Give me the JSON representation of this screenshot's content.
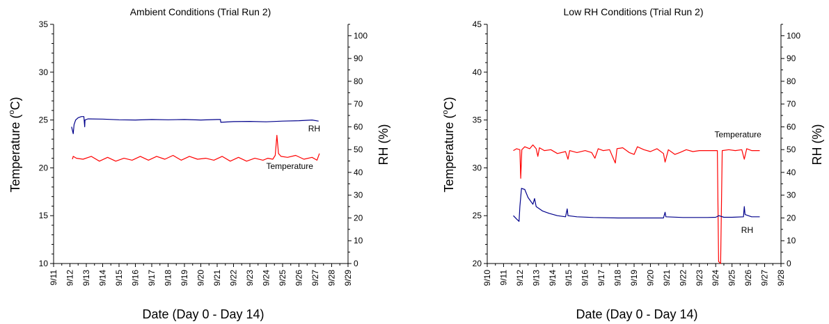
{
  "chart_data": [
    {
      "type": "line",
      "title": "Ambient Conditions (Trial Run 2)",
      "xlabel": "Date (Day 0 - Day 14)",
      "ylabel_left_main": "Temperature (",
      "ylabel_left_sup": "o",
      "ylabel_left_tail": "C)",
      "ylabel_right": "RH (%)",
      "x_ticks": [
        "9/11",
        "9/12",
        "9/13",
        "9/14",
        "9/15",
        "9/16",
        "9/17",
        "9/18",
        "9/19",
        "9/20",
        "9/21",
        "9/22",
        "9/23",
        "9/24",
        "9/25",
        "9/26",
        "9/27",
        "9/28",
        "9/29"
      ],
      "xlim": [
        0,
        18
      ],
      "ylim_left": [
        10,
        35
      ],
      "y_ticks_left": [
        10,
        15,
        20,
        25,
        30,
        35
      ],
      "ylim_right": [
        0,
        105
      ],
      "y_ticks_right": [
        0,
        10,
        20,
        30,
        40,
        50,
        60,
        70,
        80,
        90,
        100
      ],
      "grid": false,
      "series": [
        {
          "name": "RH",
          "axis": "right",
          "color": "#00008b",
          "points": [
            [
              1.1,
              60
            ],
            [
              1.2,
              57
            ],
            [
              1.25,
              61
            ],
            [
              1.35,
              63
            ],
            [
              1.5,
              64
            ],
            [
              1.7,
              64.5
            ],
            [
              1.85,
              64.5
            ],
            [
              1.9,
              60
            ],
            [
              1.92,
              63
            ],
            [
              2.1,
              63.5
            ],
            [
              3.0,
              63.4
            ],
            [
              4.0,
              63.1
            ],
            [
              5.0,
              63.0
            ],
            [
              6.0,
              63.2
            ],
            [
              7.0,
              63.1
            ],
            [
              8.0,
              63.2
            ],
            [
              9.0,
              63.0
            ],
            [
              10.0,
              63.2
            ],
            [
              10.2,
              63.2
            ],
            [
              10.22,
              62.0
            ],
            [
              11.0,
              62.3
            ],
            [
              12.0,
              62.4
            ],
            [
              13.0,
              62.2
            ],
            [
              14.0,
              62.5
            ],
            [
              15.0,
              62.7
            ],
            [
              15.8,
              63.0
            ],
            [
              16.2,
              62.5
            ]
          ]
        },
        {
          "name": "Temperature",
          "axis": "left",
          "color": "#ff0000",
          "points": [
            [
              1.15,
              20.9
            ],
            [
              1.2,
              21.2
            ],
            [
              1.4,
              21.0
            ],
            [
              1.8,
              20.9
            ],
            [
              2.3,
              21.2
            ],
            [
              2.8,
              20.7
            ],
            [
              3.3,
              21.1
            ],
            [
              3.8,
              20.7
            ],
            [
              4.3,
              21.0
            ],
            [
              4.8,
              20.8
            ],
            [
              5.3,
              21.2
            ],
            [
              5.8,
              20.8
            ],
            [
              6.3,
              21.2
            ],
            [
              6.8,
              20.9
            ],
            [
              7.3,
              21.3
            ],
            [
              7.8,
              20.8
            ],
            [
              8.3,
              21.2
            ],
            [
              8.8,
              20.9
            ],
            [
              9.3,
              21.0
            ],
            [
              9.8,
              20.8
            ],
            [
              10.3,
              21.2
            ],
            [
              10.8,
              20.7
            ],
            [
              11.3,
              21.1
            ],
            [
              11.8,
              20.7
            ],
            [
              12.3,
              21.0
            ],
            [
              12.8,
              20.8
            ],
            [
              13.1,
              21.0
            ],
            [
              13.4,
              20.9
            ],
            [
              13.55,
              21.3
            ],
            [
              13.65,
              23.4
            ],
            [
              13.75,
              21.5
            ],
            [
              13.9,
              21.2
            ],
            [
              14.3,
              21.1
            ],
            [
              14.8,
              21.3
            ],
            [
              15.3,
              20.9
            ],
            [
              15.8,
              21.1
            ],
            [
              16.1,
              20.8
            ],
            [
              16.25,
              21.5
            ]
          ]
        }
      ],
      "annotations": [
        "RH",
        "Temperature"
      ]
    },
    {
      "type": "line",
      "title": "Low RH Conditions (Trial Run 2)",
      "xlabel": "Date (Day 0 - Day 14)",
      "ylabel_left_main": "Temperature (",
      "ylabel_left_sup": "o",
      "ylabel_left_tail": "C)",
      "ylabel_right": "RH (%)",
      "x_ticks": [
        "9/10",
        "9/11",
        "9/12",
        "9/13",
        "9/14",
        "9/15",
        "9/16",
        "9/17",
        "9/18",
        "9/19",
        "9/20",
        "9/21",
        "9/22",
        "9/23",
        "9/24",
        "9/25",
        "9/26",
        "9/27",
        "9/28"
      ],
      "xlim": [
        0,
        18
      ],
      "ylim_left": [
        20,
        45
      ],
      "y_ticks_left": [
        20,
        25,
        30,
        35,
        40,
        45
      ],
      "ylim_right": [
        0,
        105
      ],
      "y_ticks_right": [
        0,
        10,
        20,
        30,
        40,
        50,
        60,
        70,
        80,
        90,
        100
      ],
      "grid": false,
      "series": [
        {
          "name": "Temperature",
          "axis": "left",
          "color": "#ff0000",
          "points": [
            [
              1.6,
              31.8
            ],
            [
              1.8,
              32.0
            ],
            [
              2.0,
              31.9
            ],
            [
              2.05,
              28.9
            ],
            [
              2.12,
              31.9
            ],
            [
              2.3,
              32.2
            ],
            [
              2.6,
              32.0
            ],
            [
              2.8,
              32.4
            ],
            [
              3.0,
              32.0
            ],
            [
              3.1,
              31.2
            ],
            [
              3.2,
              32.1
            ],
            [
              3.5,
              31.8
            ],
            [
              3.9,
              31.9
            ],
            [
              4.3,
              31.5
            ],
            [
              4.8,
              31.7
            ],
            [
              4.95,
              30.9
            ],
            [
              5.05,
              31.8
            ],
            [
              5.5,
              31.6
            ],
            [
              6.0,
              31.8
            ],
            [
              6.4,
              31.6
            ],
            [
              6.6,
              31.0
            ],
            [
              6.8,
              32.0
            ],
            [
              7.1,
              31.8
            ],
            [
              7.5,
              31.9
            ],
            [
              7.85,
              30.5
            ],
            [
              7.95,
              32.0
            ],
            [
              8.3,
              32.1
            ],
            [
              8.7,
              31.6
            ],
            [
              9.0,
              31.4
            ],
            [
              9.2,
              32.2
            ],
            [
              9.6,
              31.9
            ],
            [
              10.0,
              31.7
            ],
            [
              10.4,
              32.0
            ],
            [
              10.8,
              31.5
            ],
            [
              10.9,
              30.6
            ],
            [
              11.1,
              31.9
            ],
            [
              11.5,
              31.4
            ],
            [
              11.8,
              31.6
            ],
            [
              12.2,
              31.9
            ],
            [
              12.6,
              31.7
            ],
            [
              13.0,
              31.8
            ],
            [
              13.7,
              31.8
            ],
            [
              14.1,
              31.8
            ],
            [
              14.18,
              20.2
            ],
            [
              14.3,
              20.0
            ],
            [
              14.4,
              31.8
            ],
            [
              14.8,
              31.9
            ],
            [
              15.2,
              31.8
            ],
            [
              15.6,
              31.9
            ],
            [
              15.75,
              30.9
            ],
            [
              15.9,
              32.0
            ],
            [
              16.2,
              31.8
            ],
            [
              16.7,
              31.8
            ]
          ]
        },
        {
          "name": "RH",
          "axis": "right",
          "color": "#00008b",
          "points": [
            [
              1.6,
              21
            ],
            [
              1.8,
              19.5
            ],
            [
              1.95,
              18.5
            ],
            [
              2.0,
              25
            ],
            [
              2.1,
              33
            ],
            [
              2.3,
              32.5
            ],
            [
              2.5,
              29
            ],
            [
              2.8,
              26
            ],
            [
              2.9,
              28.5
            ],
            [
              3.0,
              25
            ],
            [
              3.4,
              23
            ],
            [
              3.8,
              22
            ],
            [
              4.3,
              21
            ],
            [
              4.8,
              20.5
            ],
            [
              4.9,
              24
            ],
            [
              4.95,
              21
            ],
            [
              5.5,
              20.5
            ],
            [
              6.5,
              20.2
            ],
            [
              8.0,
              20.0
            ],
            [
              9.5,
              20.0
            ],
            [
              10.8,
              20.0
            ],
            [
              10.9,
              22.5
            ],
            [
              10.95,
              20.5
            ],
            [
              12.0,
              20.2
            ],
            [
              13.5,
              20.2
            ],
            [
              14.0,
              20.3
            ],
            [
              14.2,
              21
            ],
            [
              14.5,
              20.3
            ],
            [
              15.0,
              20.3
            ],
            [
              15.7,
              20.5
            ],
            [
              15.75,
              25
            ],
            [
              15.8,
              21.5
            ],
            [
              16.2,
              20.5
            ],
            [
              16.7,
              20.5
            ]
          ]
        }
      ],
      "annotations": [
        "Temperature",
        "RH"
      ]
    }
  ]
}
